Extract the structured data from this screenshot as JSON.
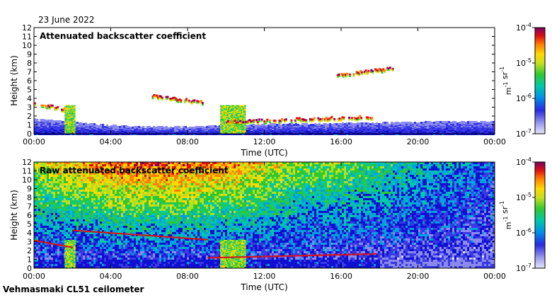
{
  "header": {
    "date": "23 June 2022"
  },
  "footer": {
    "instrument": "Vehmasmaki CL51 ceilometer"
  },
  "chart_data": [
    {
      "type": "heatmap",
      "title": "Attenuated backscatter coefficient",
      "xlabel": "Time (UTC)",
      "ylabel": "Height (km)",
      "xlim": [
        0,
        24
      ],
      "ylim": [
        0,
        12
      ],
      "x_ticks": [
        "00:00",
        "04:00",
        "08:00",
        "12:00",
        "16:00",
        "20:00",
        "00:00"
      ],
      "y_ticks": [
        "0",
        "1",
        "2",
        "3",
        "4",
        "5",
        "6",
        "7",
        "8",
        "9",
        "10",
        "11",
        "12"
      ],
      "colorbar": {
        "unit": "m-1 sr-1",
        "scale": "log",
        "range": [
          1e-07,
          0.0001
        ],
        "tick_labels": [
          "10-7",
          "10-6",
          "10-5",
          "10-4"
        ]
      },
      "features": [
        {
          "kind": "boundary_layer",
          "from_h": 0,
          "to_h": 24,
          "top_km": [
            1.7,
            1.2,
            0.8,
            0.8,
            1.0,
            1.2,
            1.2,
            1.3,
            1.4,
            1.4
          ]
        },
        {
          "kind": "cloud_layer",
          "time_h": [
            0.0,
            1.9
          ],
          "height_km": [
            3.3,
            2.5
          ]
        },
        {
          "kind": "cloud_layer",
          "time_h": [
            6.0,
            8.8
          ],
          "height_km": [
            4.2,
            3.4
          ]
        },
        {
          "kind": "precipitation",
          "time_h": [
            1.6,
            2.1
          ],
          "height_km": [
            0,
            3.2
          ]
        },
        {
          "kind": "precipitation",
          "time_h": [
            9.7,
            11.0
          ],
          "height_km": [
            0,
            3.2
          ]
        },
        {
          "kind": "cloud_layer",
          "time_h": [
            10.0,
            17.8
          ],
          "height_km": [
            1.2,
            1.8
          ]
        },
        {
          "kind": "elevated_cloud",
          "time_h": [
            15.7,
            18.8
          ],
          "height_km": [
            6.5,
            7.3
          ]
        }
      ]
    },
    {
      "type": "heatmap",
      "title": "Raw attenuated backscatter coefficient",
      "xlabel": "Time (UTC)",
      "ylabel": "Height (km)",
      "xlim": [
        0,
        24
      ],
      "ylim": [
        0,
        12
      ],
      "x_ticks": [
        "00:00",
        "04:00",
        "08:00",
        "12:00",
        "16:00",
        "20:00",
        "00:00"
      ],
      "y_ticks": [
        "0",
        "1",
        "2",
        "3",
        "4",
        "5",
        "6",
        "7",
        "8",
        "9",
        "10",
        "11",
        "12"
      ],
      "colorbar": {
        "unit": "m-1 sr-1",
        "scale": "log",
        "range": [
          1e-07,
          0.0001
        ],
        "tick_labels": [
          "10-7",
          "10-6",
          "10-5",
          "10-4"
        ]
      },
      "features": [
        {
          "kind": "noise",
          "description": "high background noise increasing with height, strongest 05:00-15:00"
        }
      ]
    }
  ],
  "colors": {
    "colormap": [
      "#d9d9f5",
      "#7777ee",
      "#2222dd",
      "#00a0e0",
      "#00c8a0",
      "#40c840",
      "#c8e020",
      "#ffd000",
      "#ff7000",
      "#d81010",
      "#800060"
    ]
  }
}
